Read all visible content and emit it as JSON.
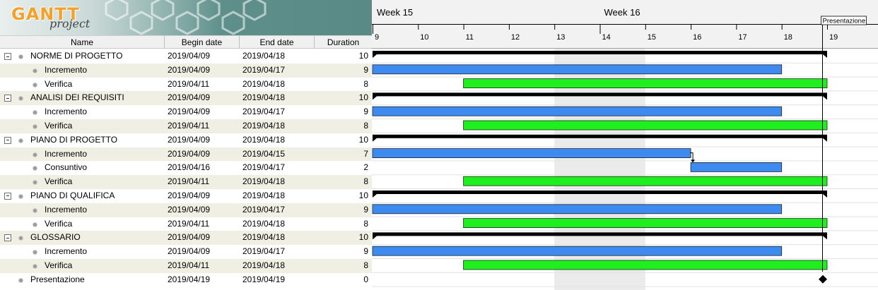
{
  "logo": {
    "word": "GANTT",
    "sub": "project"
  },
  "table": {
    "headers": {
      "name": "Name",
      "begin": "Begin date",
      "end": "End date",
      "duration": "Duration"
    },
    "rows": [
      {
        "name": "NORME DI PROGETTO",
        "begin": "2019/04/09",
        "end": "2019/04/18",
        "duration": "10",
        "level": 0,
        "group": true
      },
      {
        "name": "Incremento",
        "begin": "2019/04/09",
        "end": "2019/04/17",
        "duration": "9",
        "level": 1
      },
      {
        "name": "Verifica",
        "begin": "2019/04/11",
        "end": "2019/04/18",
        "duration": "8",
        "level": 1
      },
      {
        "name": "ANALISI DEI REQUISITI",
        "begin": "2019/04/09",
        "end": "2019/04/18",
        "duration": "10",
        "level": 0,
        "group": true
      },
      {
        "name": "Incremento",
        "begin": "2019/04/09",
        "end": "2019/04/17",
        "duration": "9",
        "level": 1
      },
      {
        "name": "Verifica",
        "begin": "2019/04/11",
        "end": "2019/04/18",
        "duration": "8",
        "level": 1
      },
      {
        "name": "PIANO DI PROGETTO",
        "begin": "2019/04/09",
        "end": "2019/04/18",
        "duration": "10",
        "level": 0,
        "group": true
      },
      {
        "name": "Incremento",
        "begin": "2019/04/09",
        "end": "2019/04/15",
        "duration": "7",
        "level": 1
      },
      {
        "name": "Consuntivo",
        "begin": "2019/04/16",
        "end": "2019/04/17",
        "duration": "2",
        "level": 1
      },
      {
        "name": "Verifica",
        "begin": "2019/04/11",
        "end": "2019/04/18",
        "duration": "8",
        "level": 1
      },
      {
        "name": "PIANO DI QUALIFICA",
        "begin": "2019/04/09",
        "end": "2019/04/18",
        "duration": "10",
        "level": 0,
        "group": true
      },
      {
        "name": "Incremento",
        "begin": "2019/04/09",
        "end": "2019/04/17",
        "duration": "9",
        "level": 1
      },
      {
        "name": "Verifica",
        "begin": "2019/04/11",
        "end": "2019/04/18",
        "duration": "8",
        "level": 1
      },
      {
        "name": "GLOSSARIO",
        "begin": "2019/04/09",
        "end": "2019/04/18",
        "duration": "10",
        "level": 0,
        "group": true
      },
      {
        "name": "Incremento",
        "begin": "2019/04/09",
        "end": "2019/04/17",
        "duration": "9",
        "level": 1
      },
      {
        "name": "Verifica",
        "begin": "2019/04/11",
        "end": "2019/04/18",
        "duration": "8",
        "level": 1
      },
      {
        "name": "Presentazione",
        "begin": "2019/04/19",
        "end": "2019/04/19",
        "duration": "0",
        "level": 0,
        "milestone": true
      }
    ]
  },
  "timeline": {
    "weeks": [
      {
        "label": "Week 15",
        "day": 9
      },
      {
        "label": "Week 16",
        "day": 14
      }
    ],
    "days": [
      "9",
      "10",
      "11",
      "12",
      "13",
      "14",
      "15",
      "16",
      "17",
      "18",
      "19"
    ],
    "weekend_days": [
      13,
      14
    ],
    "milestone_label": "Presentazione"
  },
  "chart_data": {
    "type": "gantt",
    "x_unit": "day of April 2019",
    "tasks": [
      {
        "name": "NORME DI PROGETTO",
        "start": 9,
        "end": 18,
        "kind": "summary"
      },
      {
        "name": "Incremento",
        "start": 9,
        "end": 17,
        "kind": "increment"
      },
      {
        "name": "Verifica",
        "start": 11,
        "end": 18,
        "kind": "verify"
      },
      {
        "name": "ANALISI DEI REQUISITI",
        "start": 9,
        "end": 18,
        "kind": "summary"
      },
      {
        "name": "Incremento",
        "start": 9,
        "end": 17,
        "kind": "increment"
      },
      {
        "name": "Verifica",
        "start": 11,
        "end": 18,
        "kind": "verify"
      },
      {
        "name": "PIANO DI PROGETTO",
        "start": 9,
        "end": 18,
        "kind": "summary"
      },
      {
        "name": "Incremento",
        "start": 9,
        "end": 15,
        "kind": "increment"
      },
      {
        "name": "Consuntivo",
        "start": 16,
        "end": 17,
        "kind": "increment"
      },
      {
        "name": "Verifica",
        "start": 11,
        "end": 18,
        "kind": "verify"
      },
      {
        "name": "PIANO DI QUALIFICA",
        "start": 9,
        "end": 18,
        "kind": "summary"
      },
      {
        "name": "Incremento",
        "start": 9,
        "end": 17,
        "kind": "increment"
      },
      {
        "name": "Verifica",
        "start": 11,
        "end": 18,
        "kind": "verify"
      },
      {
        "name": "GLOSSARIO",
        "start": 9,
        "end": 18,
        "kind": "summary"
      },
      {
        "name": "Incremento",
        "start": 9,
        "end": 17,
        "kind": "increment"
      },
      {
        "name": "Verifica",
        "start": 11,
        "end": 18,
        "kind": "verify"
      },
      {
        "name": "Presentazione",
        "start": 19,
        "end": 19,
        "kind": "milestone"
      }
    ],
    "colors": {
      "increment": "#3d8bf0",
      "verify": "#1ef01e",
      "summary": "#000000",
      "weekend": "#ebebeb"
    }
  }
}
